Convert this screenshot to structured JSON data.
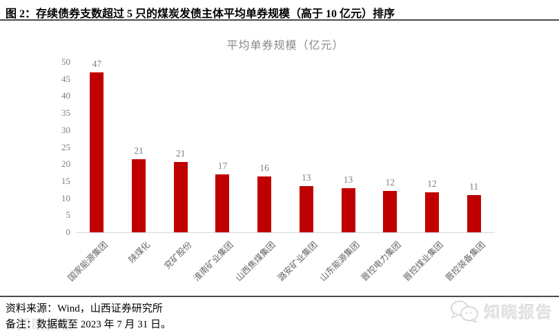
{
  "figure_title": "图 2：存续债券支数超过 5 只的煤炭发债主体平均单券规模（高于 10 亿元）排序",
  "footer": {
    "source": "资料来源：Wind，山西证券研究所",
    "note": "备注：数据截至 2023 年 7 月 31 日。"
  },
  "watermark": {
    "text": "知晓报告",
    "icon": "chat-bubbles-icon"
  },
  "colors": {
    "bar": "#c00000",
    "axis_text": "#7f7f7f",
    "category_text": "#666666",
    "baseline": "#d6d6d6",
    "rule": "#4a4a4a",
    "chart_title_text": "#8a8a8a",
    "watermark_text": "#e6e6e6"
  },
  "chart_data": {
    "type": "bar",
    "title": "平均单券规模（亿元）",
    "categories": [
      "国家能源集团",
      "陕煤化",
      "兖矿股份",
      "淮南矿业集团",
      "山西焦煤集团",
      "潞安矿业集团",
      "山东能源集团",
      "晋控电力集团",
      "晋控煤业集团",
      "晋控装备集团"
    ],
    "series": [
      {
        "name": "平均单券规模（亿元）",
        "values": [
          47,
          21.4,
          20.7,
          17,
          16.3,
          13.5,
          12.9,
          12.1,
          11.7,
          11
        ]
      }
    ],
    "data_labels": [
      "47",
      "21",
      "21",
      "17",
      "16",
      "13",
      "13",
      "12",
      "12",
      "11"
    ],
    "xlabel": "",
    "ylabel": "",
    "ylim": [
      0,
      50
    ],
    "ytick_step": 5,
    "grid": false,
    "legend": "none",
    "x_tick_rotation_deg": 45,
    "bar_color": "#c00000"
  }
}
